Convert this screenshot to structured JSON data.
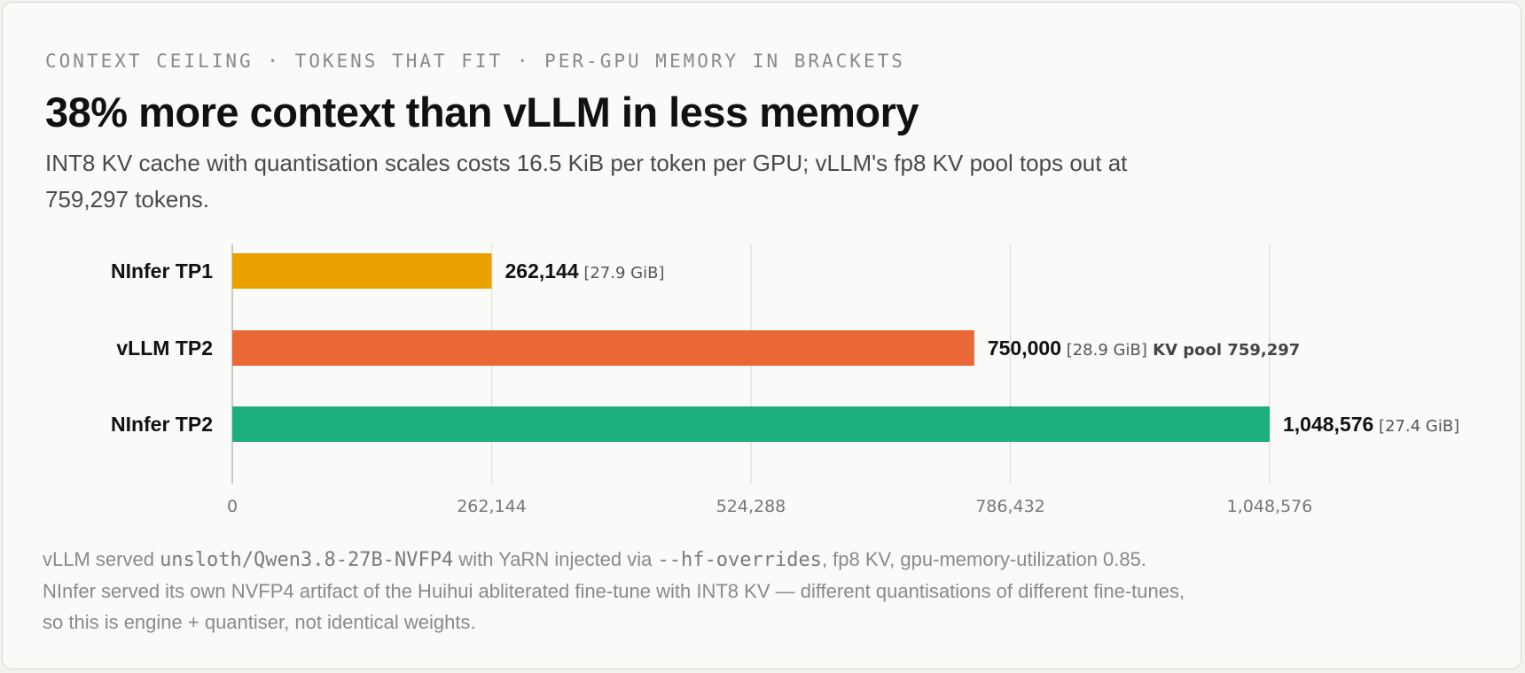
{
  "eyebrow": "CONTEXT CEILING · TOKENS THAT FIT · PER-GPU MEMORY IN BRACKETS",
  "title": "38% more context than vLLM in less memory",
  "subtitle": "INT8 KV cache with quantisation scales costs 16.5 KiB per token per GPU; vLLM's fp8 KV pool tops out at 759,297 tokens.",
  "chart_data": {
    "type": "bar",
    "orientation": "horizontal",
    "categories": [
      "NInfer TP1",
      "vLLM TP2",
      "NInfer TP2"
    ],
    "values": [
      262144,
      750000,
      1048576
    ],
    "value_labels": [
      "262,144",
      "750,000",
      "1,048,576"
    ],
    "memory_labels": [
      "[27.9 GiB]",
      "[28.9 GiB]",
      "[27.4 GiB]"
    ],
    "extra_labels": [
      "",
      "KV pool 759,297",
      ""
    ],
    "colors": [
      "#eba100",
      "#ea6835",
      "#1caf7b"
    ],
    "xlim": [
      0,
      1048576
    ],
    "xticks": [
      0,
      262144,
      524288,
      786432,
      1048576
    ],
    "xtick_labels": [
      "0",
      "262,144",
      "524,288",
      "786,432",
      "1,048,576"
    ],
    "grid": true
  },
  "footnote": {
    "t1": "vLLM served ",
    "c1": "unsloth/Qwen3.8-27B-NVFP4",
    "t2": " with YaRN injected via ",
    "c2": "--hf-overrides",
    "t3": ", fp8 KV, gpu-memory-utilization 0.85. NInfer served its own NVFP4 artifact of the Huihui abliterated fine-tune with INT8 KV — different quantisations of different fine-tunes, so this is engine + quantiser, not identical weights."
  }
}
